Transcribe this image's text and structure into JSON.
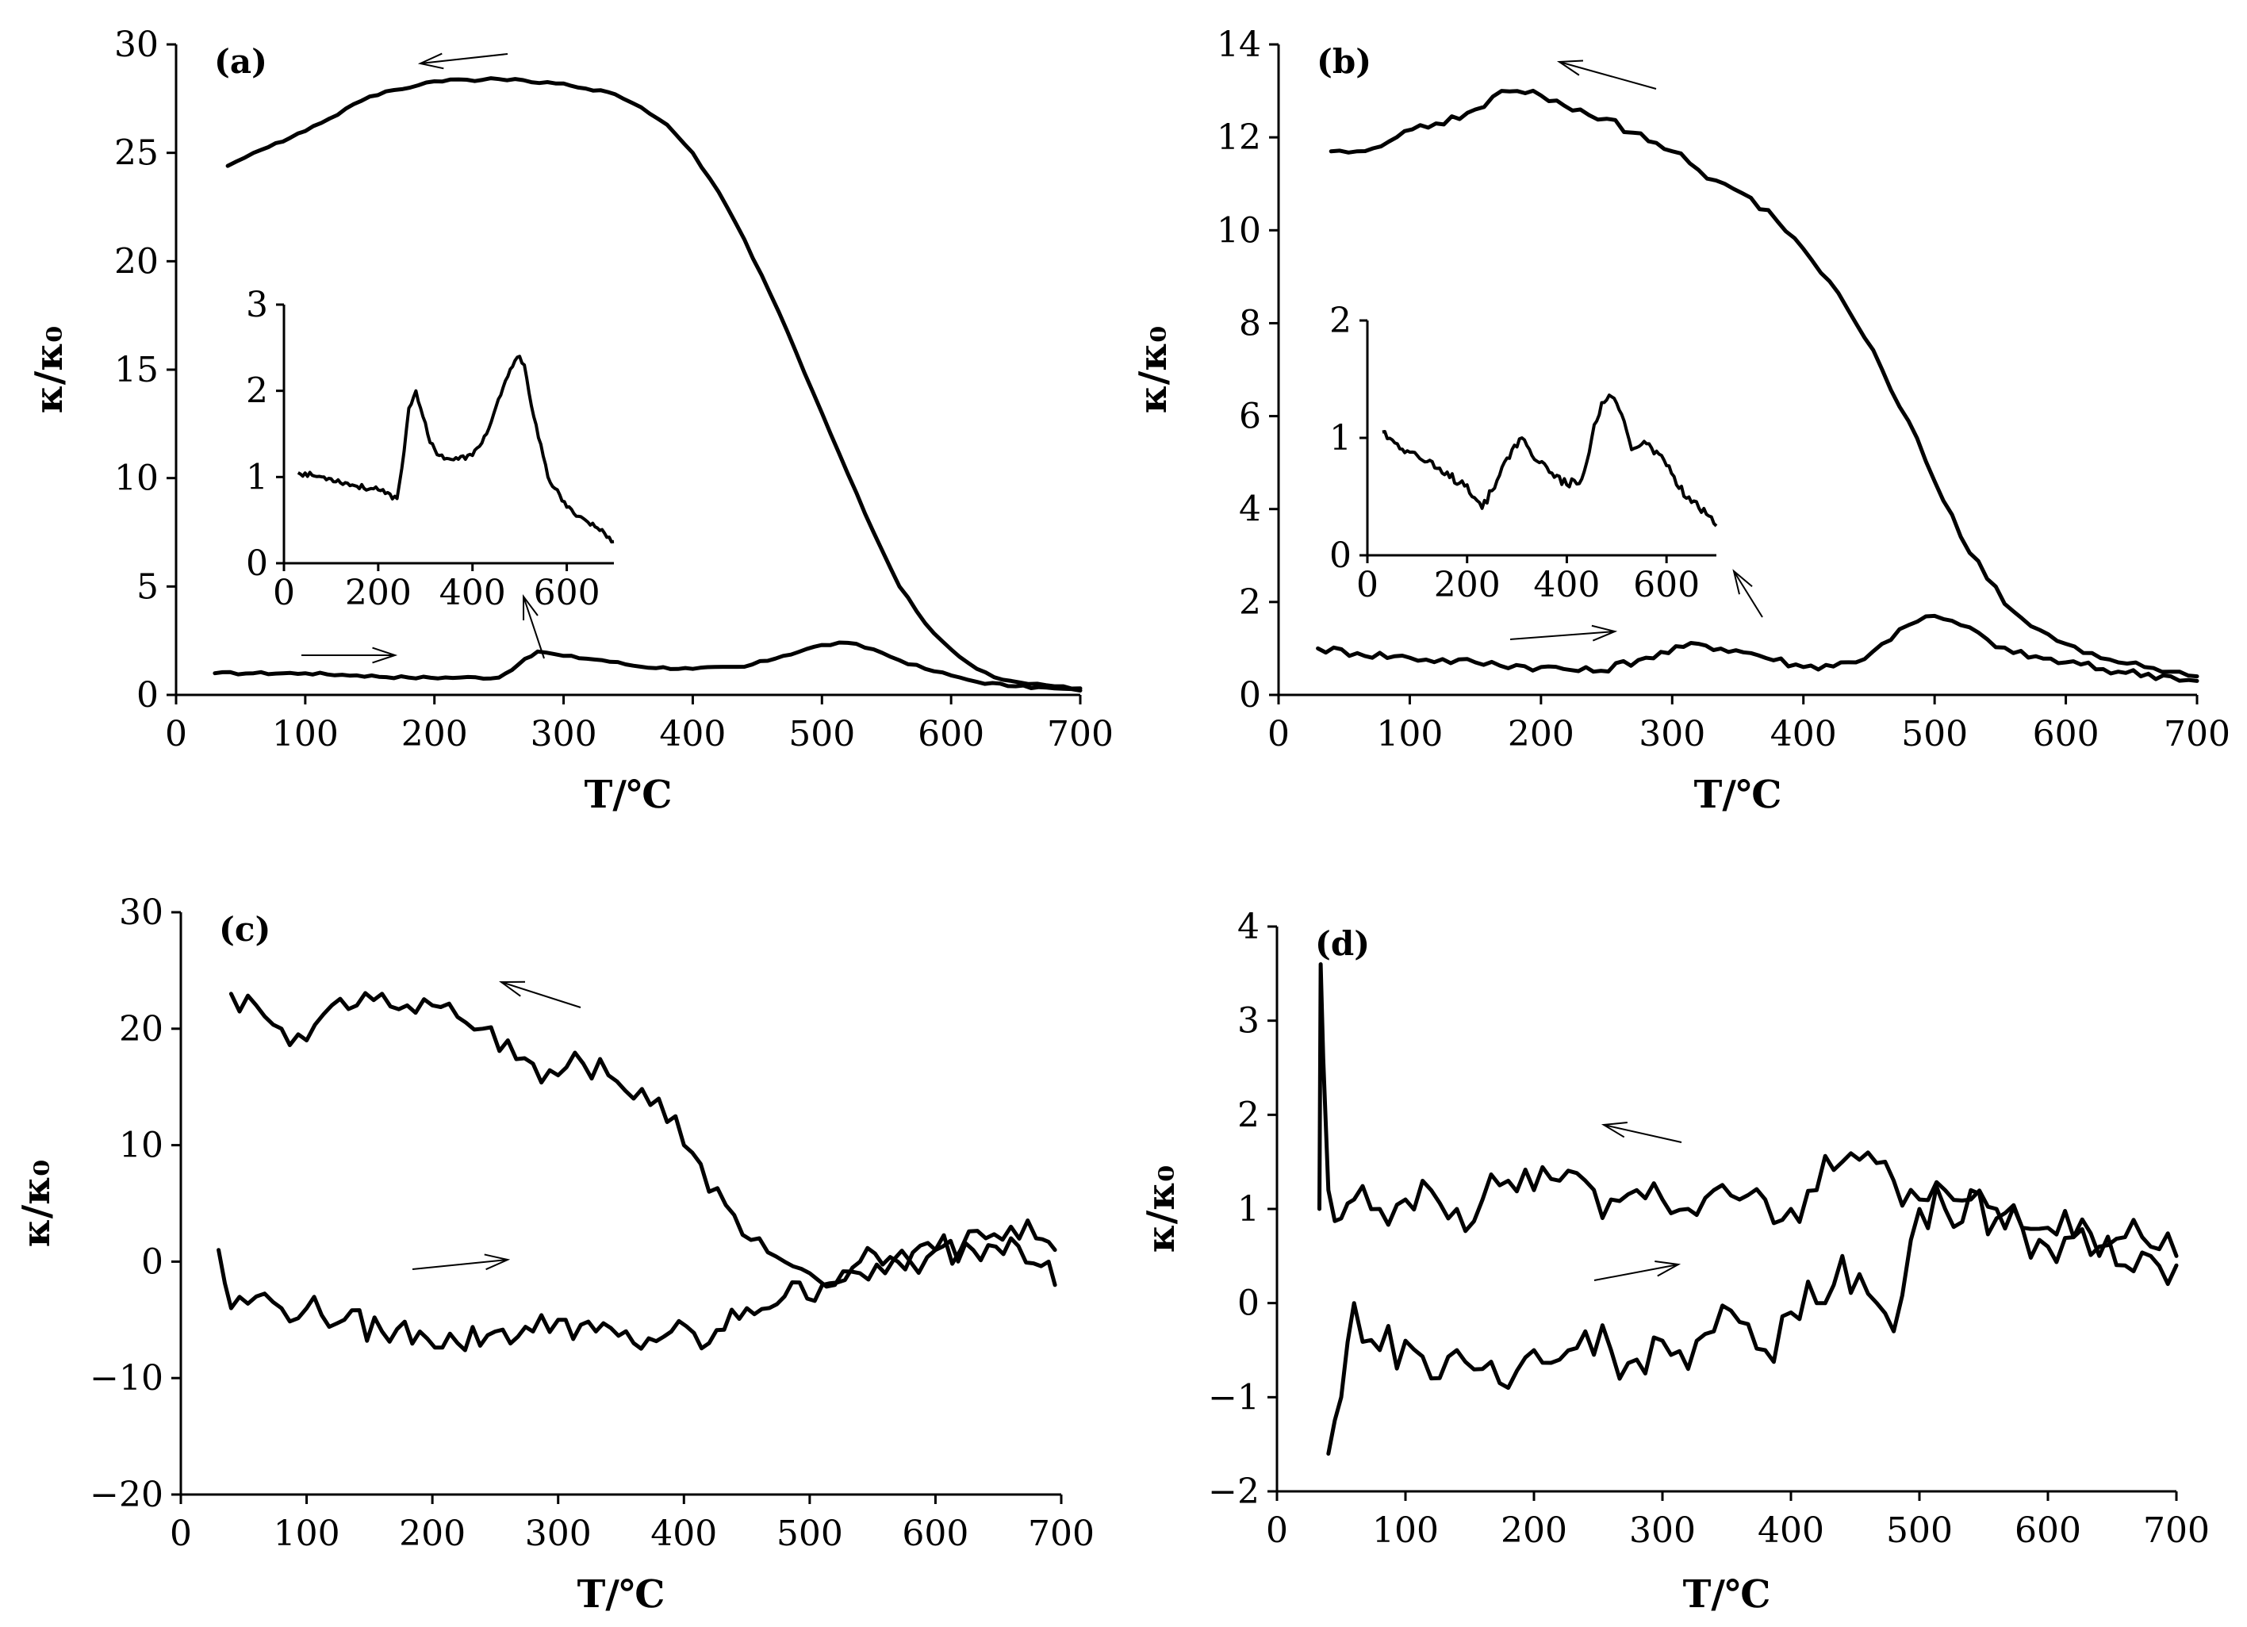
{
  "chart_data": [
    {
      "type": "line",
      "panel_label": "(a)",
      "xlabel": "T/℃",
      "ylabel": "κ/κ₀",
      "xlim": [
        0,
        700
      ],
      "ylim": [
        0,
        30
      ],
      "xticks": [
        "0",
        "100",
        "200",
        "300",
        "400",
        "500",
        "600",
        "700"
      ],
      "yticks": [
        "0",
        "5",
        "10",
        "15",
        "20",
        "25",
        "30"
      ],
      "series": [
        {
          "direction": "heating",
          "x": [
            30,
            60,
            100,
            140,
            180,
            220,
            250,
            265,
            280,
            300,
            330,
            360,
            400,
            440,
            470,
            500,
            520,
            540,
            560,
            580,
            600,
            620,
            650,
            680,
            700
          ],
          "y": [
            1.0,
            1.0,
            1.0,
            0.9,
            0.8,
            0.8,
            0.8,
            1.4,
            2.0,
            1.8,
            1.6,
            1.3,
            1.2,
            1.3,
            1.8,
            2.3,
            2.4,
            2.1,
            1.6,
            1.2,
            0.9,
            0.6,
            0.4,
            0.3,
            0.2
          ]
        },
        {
          "direction": "cooling",
          "x": [
            700,
            680,
            660,
            640,
            620,
            600,
            580,
            560,
            540,
            520,
            500,
            480,
            460,
            440,
            420,
            400,
            380,
            360,
            340,
            300,
            250,
            200,
            150,
            100,
            60,
            40
          ],
          "y": [
            0.3,
            0.4,
            0.5,
            0.7,
            1.2,
            2.1,
            3.3,
            5.0,
            7.5,
            10.2,
            13.0,
            15.8,
            18.5,
            21.0,
            23.2,
            25.0,
            26.3,
            27.1,
            27.7,
            28.2,
            28.4,
            28.3,
            27.6,
            26.0,
            25.0,
            24.4
          ]
        }
      ],
      "inset": {
        "xlim": [
          0,
          700
        ],
        "ylim": [
          0,
          3
        ],
        "xticks": [
          "0",
          "200",
          "400",
          "600"
        ],
        "yticks": [
          "0",
          "1",
          "2",
          "3"
        ],
        "x": [
          30,
          60,
          100,
          150,
          200,
          240,
          255,
          265,
          280,
          295,
          310,
          330,
          360,
          400,
          430,
          460,
          480,
          500,
          510,
          530,
          560,
          600,
          640,
          680,
          700
        ],
        "y": [
          1.05,
          1.02,
          0.98,
          0.9,
          0.85,
          0.75,
          1.3,
          1.8,
          2.0,
          1.7,
          1.4,
          1.25,
          1.2,
          1.25,
          1.5,
          1.95,
          2.25,
          2.4,
          2.3,
          1.7,
          1.0,
          0.65,
          0.5,
          0.35,
          0.25
        ]
      }
    },
    {
      "type": "line",
      "panel_label": "(b)",
      "xlabel": "T/℃",
      "ylabel": "κ/κ₀",
      "xlim": [
        0,
        700
      ],
      "ylim": [
        0,
        14
      ],
      "xticks": [
        "0",
        "100",
        "200",
        "300",
        "400",
        "500",
        "600",
        "700"
      ],
      "yticks": [
        "0",
        "2",
        "4",
        "6",
        "8",
        "10",
        "12",
        "14"
      ],
      "series": [
        {
          "direction": "heating",
          "x": [
            30,
            60,
            100,
            150,
            200,
            240,
            280,
            320,
            360,
            400,
            440,
            460,
            480,
            500,
            520,
            540,
            560,
            600,
            640,
            680,
            700
          ],
          "y": [
            1.0,
            0.9,
            0.8,
            0.7,
            0.6,
            0.5,
            0.8,
            1.1,
            0.9,
            0.6,
            0.7,
            1.1,
            1.5,
            1.7,
            1.5,
            1.2,
            0.9,
            0.7,
            0.5,
            0.4,
            0.3
          ]
        },
        {
          "direction": "cooling",
          "x": [
            700,
            680,
            660,
            640,
            620,
            600,
            580,
            560,
            540,
            520,
            500,
            480,
            460,
            440,
            420,
            400,
            380,
            360,
            340,
            320,
            300,
            270,
            250,
            230,
            200,
            170,
            150,
            120,
            90,
            60,
            40
          ],
          "y": [
            0.4,
            0.5,
            0.6,
            0.7,
            0.9,
            1.1,
            1.4,
            1.8,
            2.5,
            3.4,
            4.6,
            5.9,
            7.0,
            8.0,
            8.9,
            9.6,
            10.2,
            10.7,
            11.0,
            11.3,
            11.7,
            12.1,
            12.4,
            12.6,
            12.9,
            13.0,
            12.6,
            12.3,
            12.0,
            11.7,
            11.7
          ]
        }
      ],
      "inset": {
        "xlim": [
          0,
          700
        ],
        "ylim": [
          0,
          2
        ],
        "xticks": [
          "0",
          "200",
          "400",
          "600"
        ],
        "yticks": [
          "0",
          "1",
          "2"
        ],
        "x": [
          30,
          60,
          100,
          150,
          200,
          230,
          250,
          270,
          290,
          310,
          330,
          360,
          400,
          430,
          450,
          470,
          490,
          510,
          530,
          560,
          590,
          620,
          650,
          680,
          700
        ],
        "y": [
          1.05,
          0.95,
          0.85,
          0.7,
          0.6,
          0.4,
          0.55,
          0.75,
          0.9,
          1.0,
          0.85,
          0.75,
          0.6,
          0.65,
          1.0,
          1.3,
          1.35,
          1.2,
          0.9,
          0.95,
          0.85,
          0.6,
          0.45,
          0.35,
          0.25
        ]
      }
    },
    {
      "type": "line",
      "panel_label": "(c)",
      "xlabel": "T/℃",
      "ylabel": "κ/κ₀",
      "xlim": [
        0,
        700
      ],
      "ylim": [
        -20,
        30
      ],
      "xticks": [
        "0",
        "100",
        "200",
        "300",
        "400",
        "500",
        "600",
        "700"
      ],
      "yticks": [
        "−20",
        "−10",
        "0",
        "10",
        "20",
        "30"
      ],
      "series": [
        {
          "direction": "heating",
          "x": [
            30,
            40,
            60,
            80,
            100,
            130,
            160,
            190,
            220,
            250,
            280,
            300,
            330,
            360,
            390,
            420,
            450,
            480,
            510,
            540,
            570,
            600,
            630,
            660,
            690,
            695
          ],
          "y": [
            1,
            -4,
            -3,
            -4,
            -4,
            -5,
            -6,
            -6,
            -7,
            -6,
            -6,
            -5,
            -6,
            -7,
            -6,
            -7,
            -4,
            -3,
            -2,
            0,
            0,
            1,
            1,
            2,
            0,
            -2
          ]
        },
        {
          "direction": "cooling",
          "x": [
            695,
            680,
            660,
            640,
            620,
            600,
            580,
            560,
            540,
            520,
            500,
            480,
            460,
            440,
            420,
            400,
            380,
            360,
            340,
            320,
            300,
            280,
            260,
            240,
            220,
            200,
            180,
            160,
            140,
            120,
            100,
            80,
            60,
            40
          ],
          "y": [
            1,
            2,
            3,
            2,
            1,
            1,
            0,
            -1,
            -1,
            -2,
            -1,
            0,
            2,
            4,
            6,
            10,
            14,
            14,
            16,
            17,
            16,
            17,
            19,
            20,
            21,
            22,
            22,
            23,
            22,
            22,
            19,
            20,
            22,
            23
          ]
        }
      ]
    },
    {
      "type": "line",
      "panel_label": "(d)",
      "xlabel": "T/℃",
      "ylabel": "κ/κ₀",
      "xlim": [
        0,
        700
      ],
      "ylim": [
        -2,
        4
      ],
      "xticks": [
        "0",
        "100",
        "200",
        "300",
        "400",
        "500",
        "600",
        "700"
      ],
      "yticks": [
        "−2",
        "−1",
        "0",
        "1",
        "2",
        "3",
        "4"
      ],
      "series": [
        {
          "direction": "heating",
          "x": [
            40,
            50,
            60,
            80,
            100,
            120,
            140,
            160,
            180,
            200,
            220,
            240,
            260,
            280,
            300,
            320,
            340,
            360,
            380,
            400,
            420,
            440,
            460,
            480,
            500,
            520,
            540,
            560,
            580,
            600,
            620,
            640,
            660,
            680,
            700
          ],
          "y": [
            -1.6,
            -1.0,
            0.0,
            -0.5,
            -0.4,
            -0.8,
            -0.5,
            -0.7,
            -0.9,
            -0.5,
            -0.6,
            -0.3,
            -0.5,
            -0.6,
            -0.4,
            -0.7,
            -0.3,
            -0.2,
            -0.5,
            -0.1,
            0.0,
            0.5,
            0.1,
            -0.3,
            1.0,
            1.0,
            1.2,
            0.9,
            0.8,
            0.6,
            0.7,
            0.5,
            0.4,
            0.5,
            0.4
          ]
        },
        {
          "direction": "cooling",
          "x": [
            700,
            680,
            660,
            640,
            620,
            600,
            580,
            560,
            540,
            520,
            500,
            480,
            460,
            440,
            420,
            400,
            380,
            360,
            340,
            320,
            300,
            280,
            260,
            240,
            220,
            200,
            180,
            160,
            140,
            120,
            100,
            80,
            60,
            50,
            40,
            36,
            34,
            33
          ],
          "y": [
            0.5,
            0.6,
            0.7,
            0.6,
            0.7,
            0.8,
            0.8,
            1.0,
            1.1,
            1.2,
            1.1,
            1.3,
            1.6,
            1.5,
            1.2,
            1.0,
            1.1,
            1.1,
            1.2,
            1.0,
            1.1,
            1.2,
            1.1,
            1.3,
            1.3,
            1.2,
            1.3,
            1.1,
            1.0,
            1.2,
            1.1,
            1.0,
            1.1,
            0.9,
            1.2,
            2.6,
            3.6,
            1.0
          ]
        }
      ]
    }
  ]
}
